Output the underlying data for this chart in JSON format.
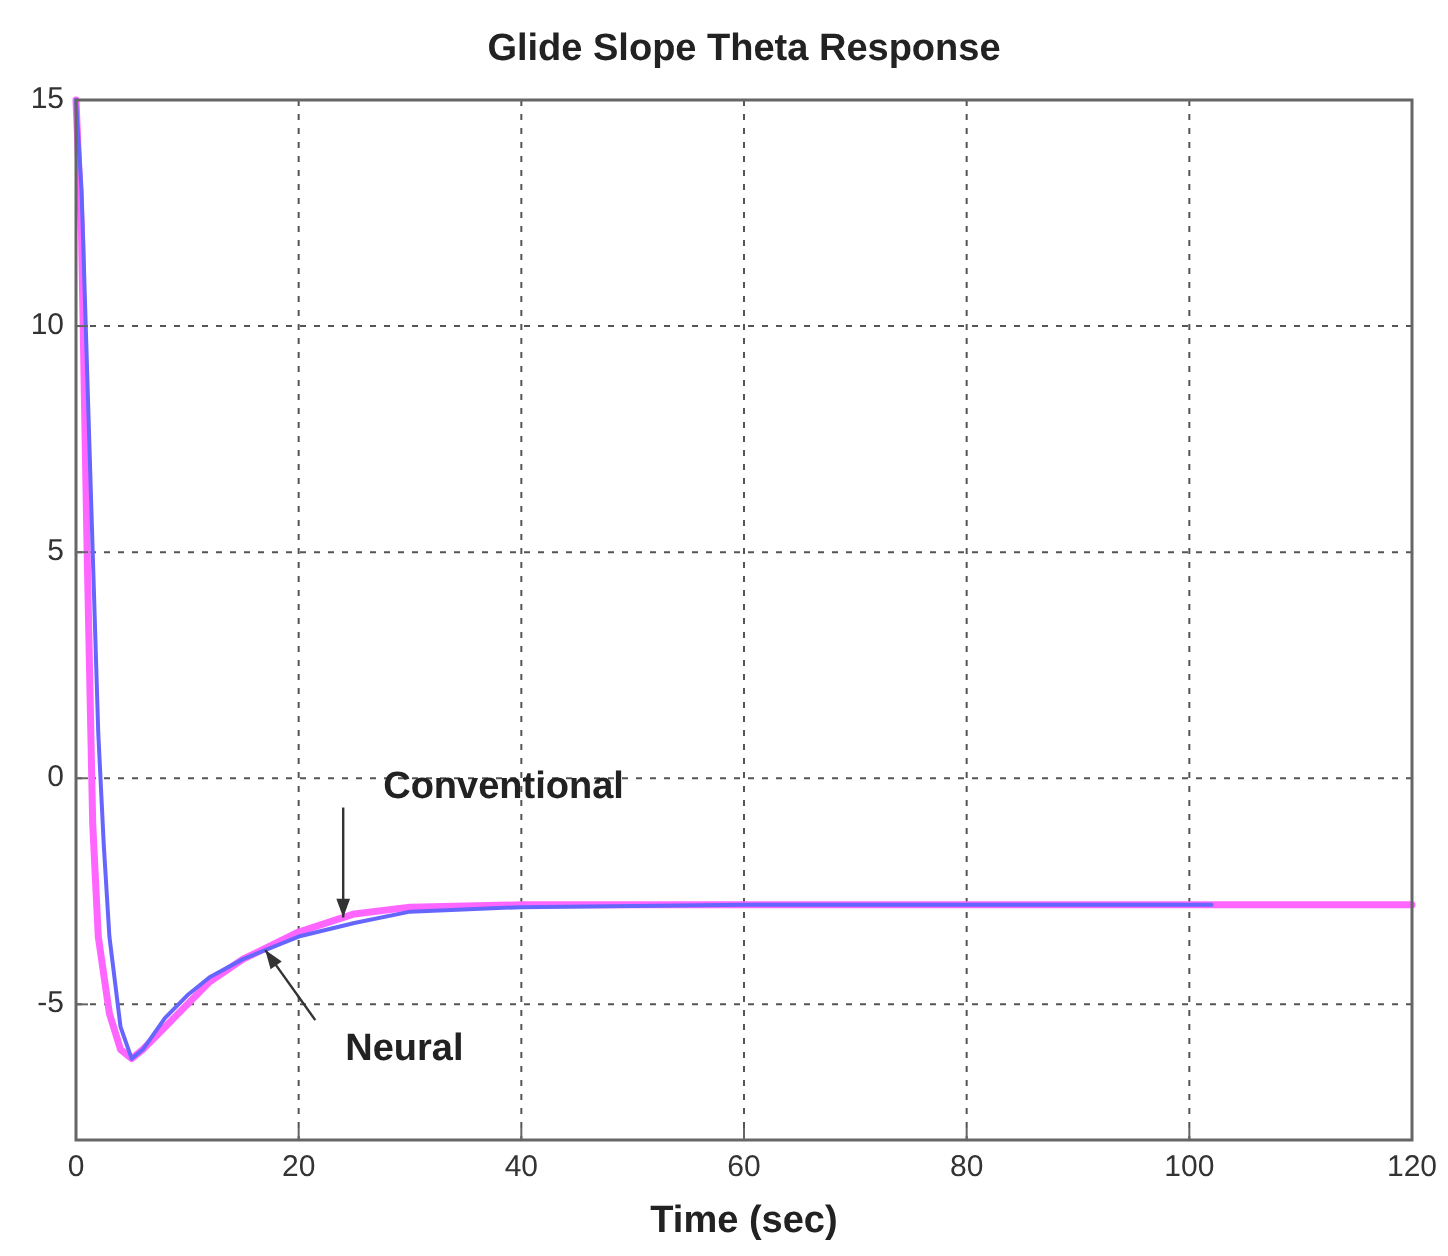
{
  "chart_data": {
    "type": "line",
    "title": "Glide Slope Theta Response",
    "xlabel": "Time (sec)",
    "xlim": [
      0,
      120
    ],
    "xticks": [
      0,
      20,
      40,
      60,
      80,
      100,
      120
    ],
    "ylim": [
      -8,
      15
    ],
    "yticks": [
      -5,
      0,
      5,
      10,
      15
    ],
    "grid": true,
    "marker": "none",
    "line_style": "solid",
    "series": [
      {
        "name": "Conventional",
        "color": "#ff66ff",
        "x": [
          0,
          0.5,
          1,
          1.5,
          2,
          3,
          4,
          5,
          6,
          8,
          10,
          12,
          15,
          20,
          25,
          30,
          40,
          60,
          120
        ],
        "values": [
          15,
          12,
          5,
          -1,
          -3.5,
          -5.2,
          -6,
          -6.2,
          -6,
          -5.5,
          -5,
          -4.5,
          -4,
          -3.4,
          -3,
          -2.85,
          -2.8,
          -2.8,
          -2.8
        ]
      },
      {
        "name": "Neural",
        "color": "#6666ff",
        "x": [
          0,
          0.5,
          1,
          1.5,
          2,
          2.5,
          3,
          4,
          5,
          6,
          8,
          10,
          12,
          15,
          20,
          25,
          30,
          40,
          60,
          102
        ],
        "values": [
          15,
          13,
          9,
          5,
          1,
          -1.5,
          -3.5,
          -5.5,
          -6.2,
          -6,
          -5.3,
          -4.8,
          -4.4,
          -4,
          -3.5,
          -3.2,
          -2.95,
          -2.85,
          -2.8,
          -2.8
        ]
      }
    ]
  }
}
